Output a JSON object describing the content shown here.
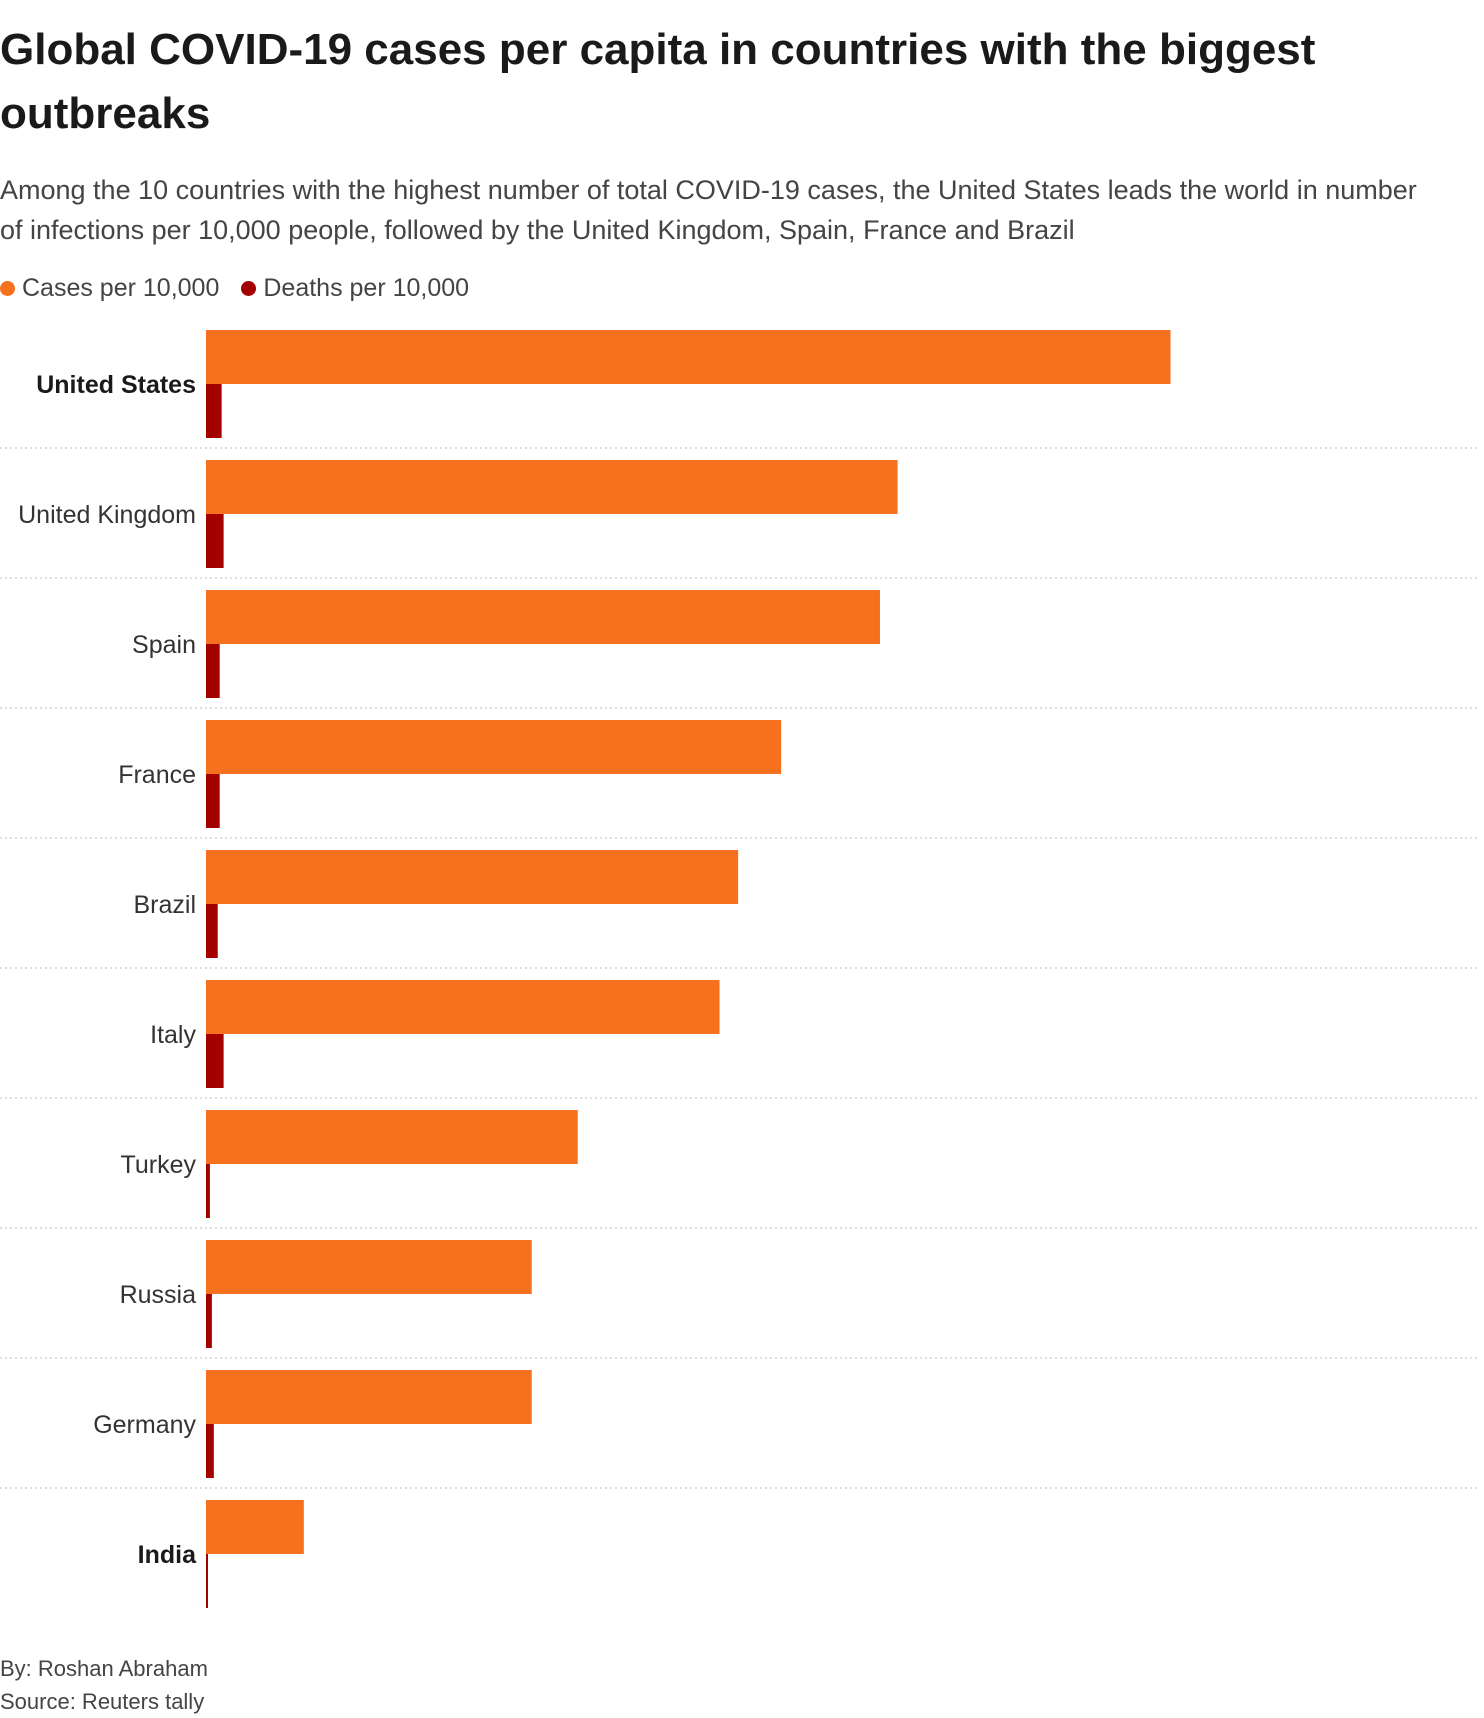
{
  "title": "Global COVID-19 cases per capita in countries with the biggest outbreaks",
  "subtitle": "Among the 10 countries with the highest number of total COVID-19 cases, the United States leads the world in number of infections per 10,000 people, followed by the United Kingdom, Spain, France and Brazil",
  "legend": {
    "cases_label": "Cases per 10,000",
    "deaths_label": "Deaths per 10,000"
  },
  "colors": {
    "cases": "#f5711d",
    "deaths": "#a30000",
    "divider": "#d4d4d4",
    "label_text": "#333333",
    "highlight_text": "#1a1a1a"
  },
  "credits": {
    "author": "By: Roshan Abraham",
    "source": "Source: Reuters tally"
  },
  "chart_data": {
    "type": "bar",
    "orientation": "horizontal",
    "title": "Global COVID-19 cases per capita in countries with the biggest outbreaks",
    "xlabel": "",
    "ylabel": "",
    "xlim": [
      0,
      110
    ],
    "grid": false,
    "legend_position": "top-left",
    "categories": [
      "United States",
      "United Kingdom",
      "Spain",
      "France",
      "Brazil",
      "Italy",
      "Turkey",
      "Russia",
      "Germany",
      "India"
    ],
    "highlighted": [
      "United States",
      "India"
    ],
    "series": [
      {
        "name": "Cases per 10,000",
        "values": [
          98.6,
          70.7,
          68.9,
          58.8,
          54.4,
          52.5,
          38.0,
          33.3,
          33.3,
          10.0
        ]
      },
      {
        "name": "Deaths per 10,000",
        "values": [
          1.6,
          1.8,
          1.4,
          1.4,
          1.2,
          1.8,
          0.4,
          0.6,
          0.8,
          0.15
        ]
      }
    ]
  }
}
